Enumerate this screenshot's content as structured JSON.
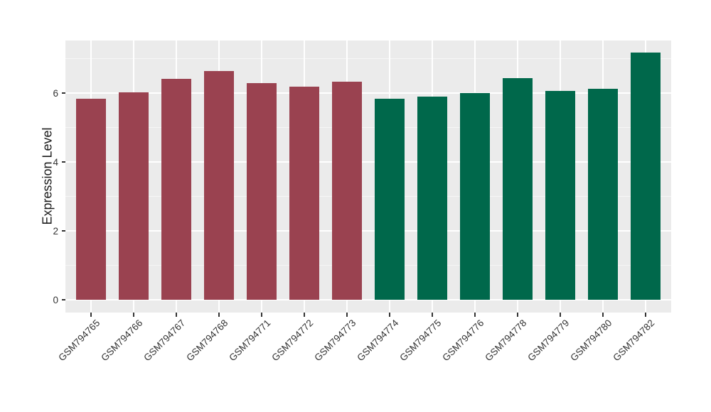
{
  "chart_data": {
    "type": "bar",
    "title": "",
    "xlabel": "",
    "ylabel": "Expression Level",
    "categories": [
      "GSM794765",
      "GSM794766",
      "GSM794767",
      "GSM794768",
      "GSM794771",
      "GSM794772",
      "GSM794773",
      "GSM794774",
      "GSM794775",
      "GSM794776",
      "GSM794778",
      "GSM794779",
      "GSM794780",
      "GSM794782"
    ],
    "values": [
      5.83,
      6.02,
      6.42,
      6.63,
      6.28,
      6.18,
      6.33,
      5.83,
      5.9,
      5.99,
      6.44,
      6.06,
      6.12,
      7.18
    ],
    "groups": [
      "group1",
      "group1",
      "group1",
      "group1",
      "group1",
      "group1",
      "group1",
      "group2",
      "group2",
      "group2",
      "group2",
      "group2",
      "group2",
      "group2"
    ],
    "group_colors": {
      "group1": "#9A4250",
      "group2": "#00684B"
    },
    "yticks": [
      0,
      2,
      4,
      6
    ],
    "yminor": [
      1,
      3,
      5,
      7
    ],
    "ylim": [
      0,
      7.53
    ],
    "legend": "none",
    "grid": true,
    "panel_bg": "#EBEBEB",
    "grid_major_color": "#FFFFFF",
    "grid_minor_color": "#FFFFFF",
    "axis_text_color": "#333333",
    "tick_color": "#333333",
    "background_color": "#FFFFFF"
  }
}
